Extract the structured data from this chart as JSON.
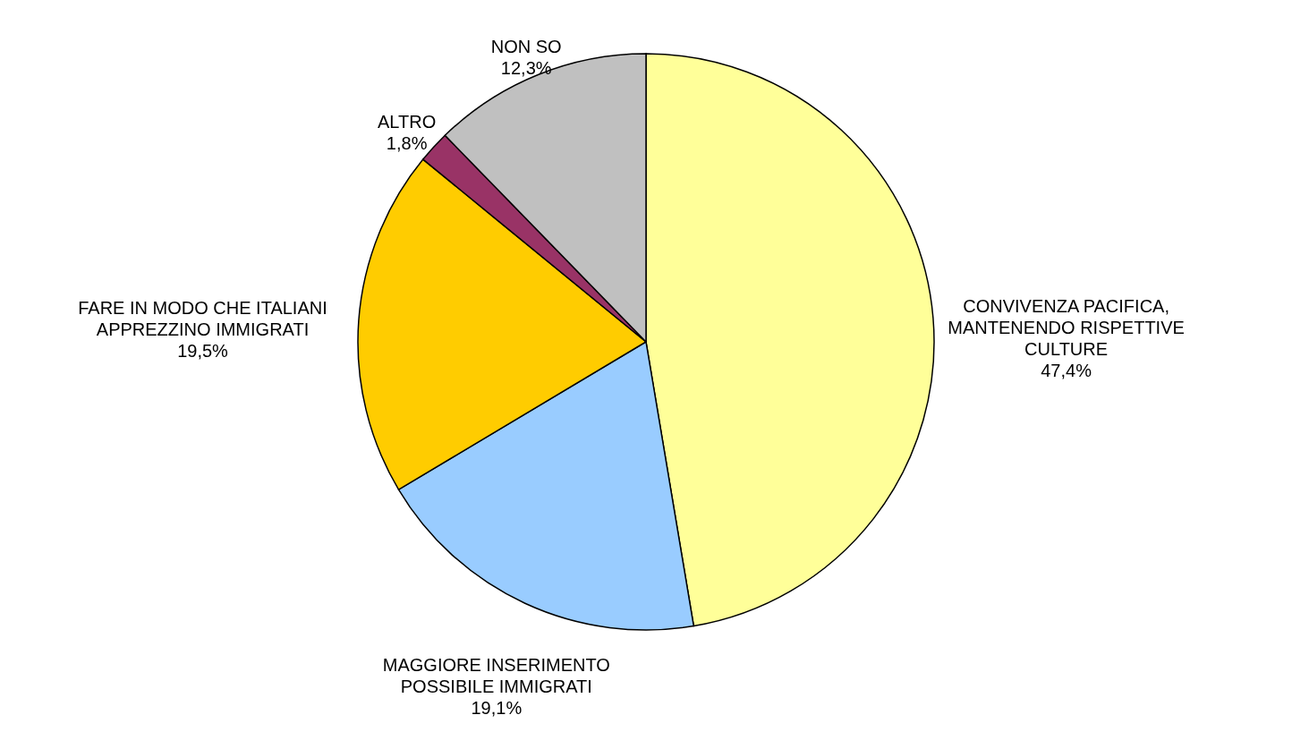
{
  "chart_data": {
    "type": "pie",
    "categories": [
      "CONVIVENZA PACIFICA, MANTENENDO RISPETTIVE CULTURE",
      "MAGGIORE INSERIMENTO POSSIBILE IMMIGRATI",
      "FARE IN MODO CHE ITALIANI APPREZZINO IMMIGRATI",
      "ALTRO",
      "NON SO"
    ],
    "values": [
      47.4,
      19.1,
      19.5,
      1.8,
      12.3
    ],
    "value_labels": [
      "47,4%",
      "19,1%",
      "19,5%",
      "1,8%",
      "12,3%"
    ],
    "colors": [
      "#ffff99",
      "#99ccff",
      "#ffcc00",
      "#993366",
      "#c0c0c0"
    ]
  }
}
